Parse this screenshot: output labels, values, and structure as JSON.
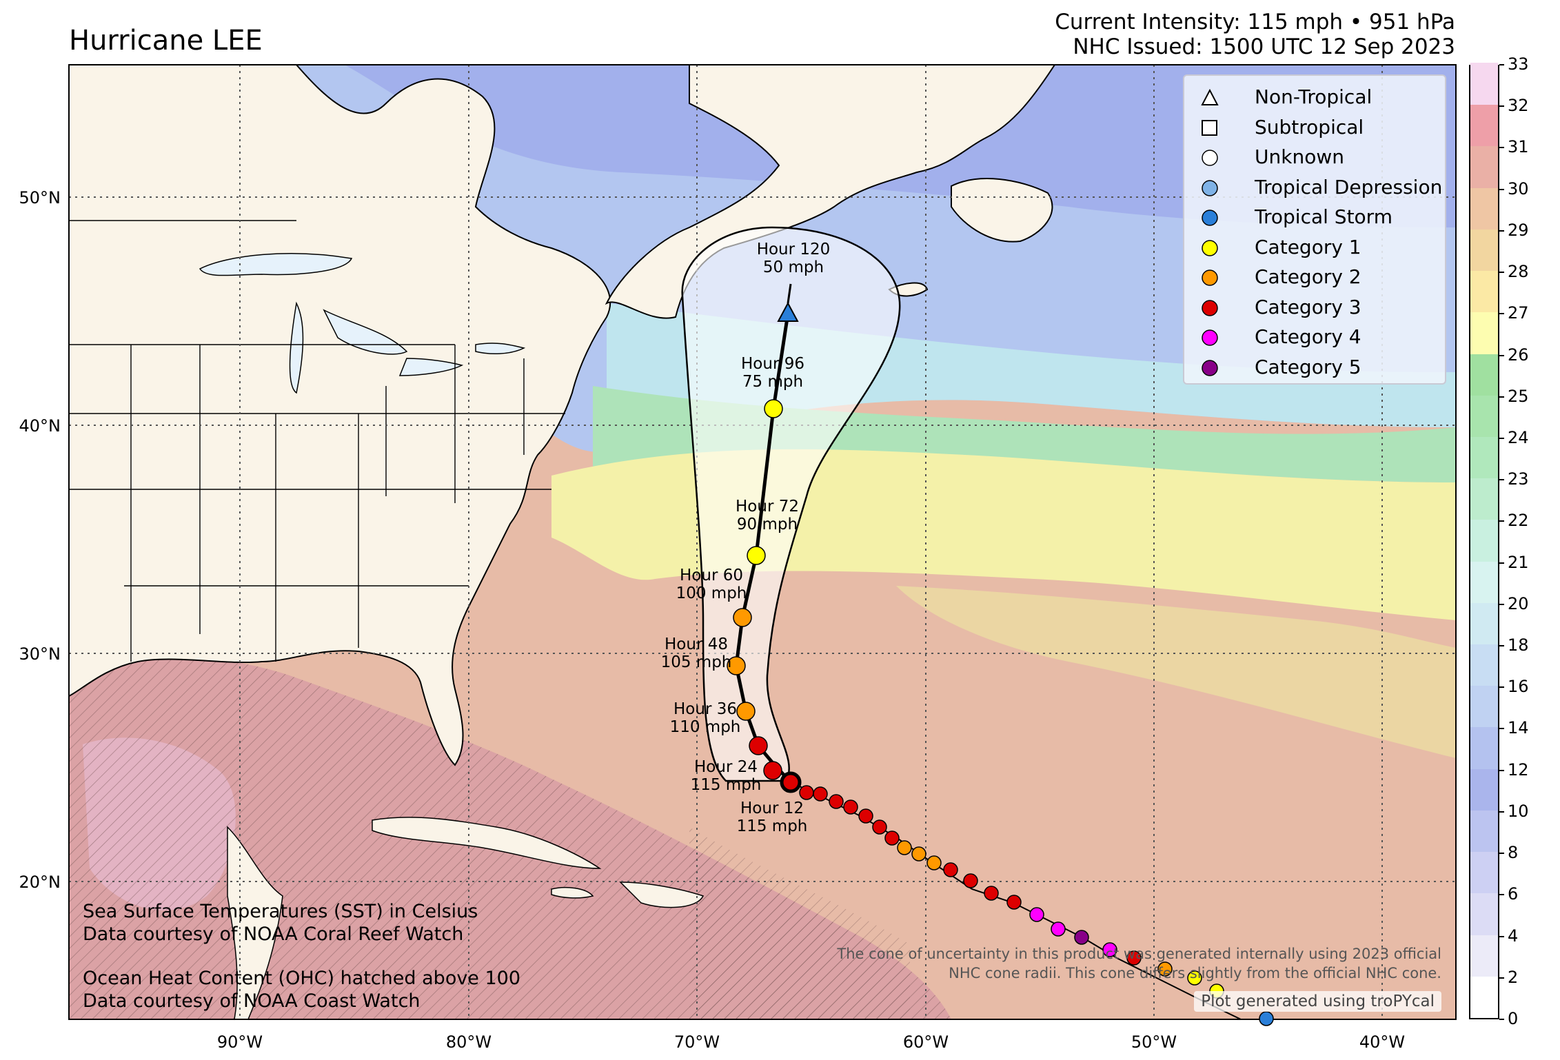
{
  "title": "Hurricane LEE",
  "intensity": "Current Intensity: 115 mph • 951 hPa",
  "issued": "NHC Issued: 1500 UTC 12 Sep 2023",
  "lon_labels": [
    "90°W",
    "80°W",
    "70°W",
    "60°W",
    "50°W",
    "40°W"
  ],
  "lat_labels": [
    "50°N",
    "40°N",
    "30°N",
    "20°N"
  ],
  "legend": [
    {
      "label": "Non-Tropical",
      "symbol": "triangle-icon",
      "color": "#ffffff"
    },
    {
      "label": "Subtropical",
      "symbol": "square-icon",
      "color": "#ffffff"
    },
    {
      "label": "Unknown",
      "symbol": "circle-icon",
      "color": "#ffffff"
    },
    {
      "label": "Tropical Depression",
      "symbol": "circle-icon",
      "color": "#7fb2e6"
    },
    {
      "label": "Tropical Storm",
      "symbol": "circle-icon",
      "color": "#2a7fd9"
    },
    {
      "label": "Category 1",
      "symbol": "circle-icon",
      "color": "#ffff00"
    },
    {
      "label": "Category 2",
      "symbol": "circle-icon",
      "color": "#ff9900"
    },
    {
      "label": "Category 3",
      "symbol": "circle-icon",
      "color": "#dd0000"
    },
    {
      "label": "Category 4",
      "symbol": "circle-icon",
      "color": "#ff00ff"
    },
    {
      "label": "Category 5",
      "symbol": "circle-icon",
      "color": "#880088"
    }
  ],
  "forecast": [
    {
      "hour": "Hour 12",
      "wind": "115 mph"
    },
    {
      "hour": "Hour 24",
      "wind": "115 mph"
    },
    {
      "hour": "Hour 36",
      "wind": "110 mph"
    },
    {
      "hour": "Hour 48",
      "wind": "105 mph"
    },
    {
      "hour": "Hour 60",
      "wind": "100 mph"
    },
    {
      "hour": "Hour 72",
      "wind": "90 mph"
    },
    {
      "hour": "Hour 96",
      "wind": "75 mph"
    },
    {
      "hour": "Hour 120",
      "wind": "50 mph"
    }
  ],
  "notes": {
    "sst1": "Sea Surface Temperatures (SST) in Celsius",
    "sst2": "Data courtesy of NOAA Coral Reef Watch",
    "ohc1": "Ocean Heat Content (OHC) hatched above 100",
    "ohc2": "Data courtesy of NOAA Coast Watch"
  },
  "cone_note1": "The cone of uncertainty in this product was generated internally using 2023 official",
  "cone_note2": "NHC cone radii. This cone differs slightly from the official NHC cone.",
  "credit": "Plot generated using troPYcal",
  "colorbar": {
    "ticks": [
      "0",
      "2",
      "4",
      "6",
      "8",
      "10",
      "12",
      "14",
      "16",
      "18",
      "20",
      "21",
      "22",
      "23",
      "24",
      "25",
      "26",
      "27",
      "28",
      "29",
      "30",
      "31",
      "32",
      "33"
    ],
    "colors": [
      "#ffffff",
      "#ecebf8",
      "#dcdcf5",
      "#cdd0f3",
      "#bcc4f0",
      "#aab5ec",
      "#b4c2ef",
      "#c0d2f2",
      "#c8ddf3",
      "#d0eaf2",
      "#d8f3f0",
      "#c9f0e0",
      "#bdeccd",
      "#b0e8bc",
      "#a8e4ad",
      "#a0e0a0",
      "#fdfdb0",
      "#fbe9a5",
      "#f2d6a0",
      "#efc6a4",
      "#eab0a6",
      "#ee9fa8",
      "#f6d8ef"
    ]
  },
  "colors": {
    "land": "#faf4e8",
    "track": "#000000"
  }
}
